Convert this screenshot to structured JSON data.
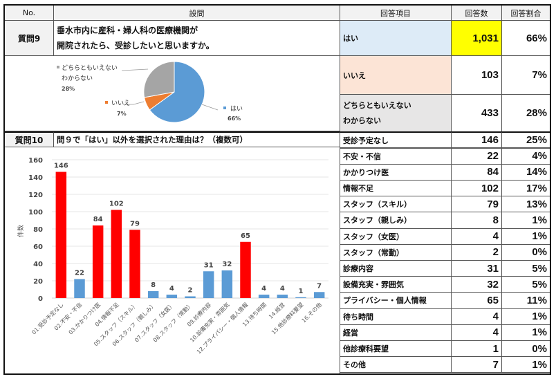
{
  "header": {
    "no": "No.",
    "question": "設問",
    "answer_item": "回答項目",
    "answer_count": "回答数",
    "answer_ratio": "回答割合"
  },
  "q9": {
    "no": "質問9",
    "question_line1": "垂水市内に産科・婦人科の医療機関が",
    "question_line2": "開院されたら、受診したいと思いますか。",
    "answers": [
      {
        "label": "はい",
        "count": "1,031",
        "ratio": "66%",
        "bg": "#ddebf7",
        "count_bg": "#ffff00"
      },
      {
        "label": "いいえ",
        "count": "103",
        "ratio": "7%",
        "bg": "#fce4d6",
        "count_bg": "#ffffff"
      },
      {
        "label_line1": "どちらともいえない",
        "label_line2": "わからない",
        "count": "433",
        "ratio": "28%",
        "bg": "#e7e6e6",
        "count_bg": "#ffffff"
      }
    ],
    "pie": {
      "type": "pie",
      "slices": [
        {
          "name": "はい",
          "value": 66,
          "label": "66%",
          "color": "#5b9bd5"
        },
        {
          "name": "いいえ",
          "value": 7,
          "label": "7%",
          "color": "#ed7d31"
        },
        {
          "name": "どちらともいえない わからない",
          "value": 28,
          "label": "28%",
          "color": "#a5a5a5"
        }
      ],
      "legend_hai": "はい",
      "legend_hai_pct": "66%",
      "legend_iie": "いいえ",
      "legend_iie_pct": "7%",
      "legend_dochira1": "どちらともいえない",
      "legend_dochira2": "わからない",
      "legend_dochira_pct": "28%"
    }
  },
  "q10": {
    "no": "質問10",
    "question": "問９で「はい」以外を選択された理由は？（複数可）",
    "answers": [
      {
        "label": "受診予定なし",
        "count": "146",
        "ratio": "25%"
      },
      {
        "label": "不安・不信",
        "count": "22",
        "ratio": "4%"
      },
      {
        "label": "かかりつけ医",
        "count": "84",
        "ratio": "14%"
      },
      {
        "label": "情報不足",
        "count": "102",
        "ratio": "17%"
      },
      {
        "label": "スタッフ（スキル）",
        "count": "79",
        "ratio": "13%"
      },
      {
        "label": "スタッフ（親しみ）",
        "count": "8",
        "ratio": "1%"
      },
      {
        "label": "スタッフ（女医）",
        "count": "4",
        "ratio": "1%"
      },
      {
        "label": "スタッフ（常勤）",
        "count": "2",
        "ratio": "0%"
      },
      {
        "label": "診療内容",
        "count": "31",
        "ratio": "5%"
      },
      {
        "label": "設備充実・雰囲気",
        "count": "32",
        "ratio": "5%"
      },
      {
        "label": "プライバシー・個人情報",
        "count": "65",
        "ratio": "11%"
      },
      {
        "label": "待ち時間",
        "count": "4",
        "ratio": "1%"
      },
      {
        "label": "経営",
        "count": "4",
        "ratio": "1%"
      },
      {
        "label": "他診療科要望",
        "count": "1",
        "ratio": "0%"
      },
      {
        "label": "その他",
        "count": "7",
        "ratio": "1%"
      }
    ]
  },
  "chart_data": [
    {
      "type": "pie",
      "title": "",
      "categories": [
        "はい",
        "いいえ",
        "どちらともいえない わからない"
      ],
      "values": [
        66,
        7,
        28
      ],
      "colors": [
        "#5b9bd5",
        "#ed7d31",
        "#a5a5a5"
      ]
    },
    {
      "type": "bar",
      "title": "",
      "xlabel": "",
      "ylabel": "件数",
      "ylim": [
        0,
        160
      ],
      "yticks": [
        0,
        20,
        40,
        60,
        80,
        100,
        120,
        140,
        160
      ],
      "grid": true,
      "categories": [
        "01.受診予定なし",
        "02.不安・不信",
        "03.かかりつけ医",
        "04.情報不足",
        "05.スタッフ（スキル）",
        "06.スタッフ（親しみ）",
        "07.スタッフ（女医）",
        "08.スタッフ（常勤）",
        "09.診療内容",
        "10.設備充実・雰囲気",
        "12.プライバシー・個人情報",
        "13.待ち時間",
        "14.経営",
        "15.他診療科要望",
        "16.その他"
      ],
      "values": [
        146,
        22,
        84,
        102,
        79,
        8,
        4,
        2,
        31,
        32,
        65,
        4,
        4,
        1,
        7
      ],
      "colors": [
        "#ff0000",
        "#5b9bd5",
        "#ff0000",
        "#ff0000",
        "#ff0000",
        "#5b9bd5",
        "#5b9bd5",
        "#5b9bd5",
        "#5b9bd5",
        "#5b9bd5",
        "#ff0000",
        "#5b9bd5",
        "#5b9bd5",
        "#5b9bd5",
        "#5b9bd5"
      ]
    }
  ]
}
